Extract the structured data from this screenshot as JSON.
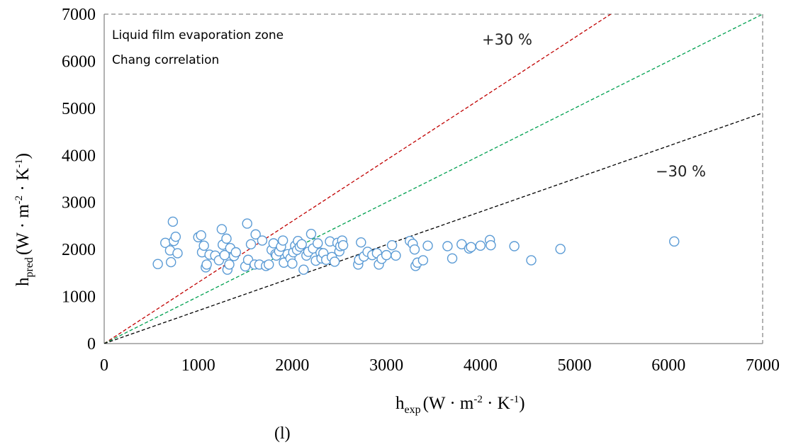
{
  "chart_data": {
    "type": "scatter",
    "x_range": [
      0,
      7000
    ],
    "y_range": [
      0,
      7000
    ],
    "x_ticks": [
      0,
      1000,
      2000,
      3000,
      4000,
      5000,
      6000,
      7000
    ],
    "y_ticks": [
      0,
      1000,
      2000,
      3000,
      4000,
      5000,
      6000,
      7000
    ],
    "x_tick_labels": [
      "0",
      "1000",
      "2000",
      "3000",
      "4000",
      "5000",
      "6000",
      "7000"
    ],
    "y_tick_labels": [
      "0",
      "1000",
      "2000",
      "3000",
      "4000",
      "5000",
      "6000",
      "7000"
    ],
    "xlabel": {
      "base": "h",
      "sub": "exp",
      "unit": "(W · m",
      "exp1": "-2",
      "mid": " · K",
      "exp2": "-1",
      "close": ")"
    },
    "ylabel": {
      "base": "h",
      "sub": "pred",
      "unit": "(W · m",
      "exp1": "-2",
      "mid": " · K",
      "exp2": "-1",
      "close": ")"
    },
    "panel_label": "(l)",
    "annotation_lines": [
      "Liquid  film  evaporation zone",
      "Chang correlation"
    ],
    "reference_lines": [
      {
        "label": "+30 %",
        "slope": 1.3,
        "color": "#c00000"
      },
      {
        "label": "",
        "slope": 1.0,
        "color": "#00a050"
      },
      {
        "label": "−30 %",
        "slope": 0.7,
        "color": "#000000"
      }
    ],
    "grid": false,
    "marker": {
      "shape": "open-circle",
      "color": "#5b9bd5"
    },
    "points": [
      [
        570,
        1690
      ],
      [
        650,
        2140
      ],
      [
        700,
        1980
      ],
      [
        710,
        1730
      ],
      [
        730,
        2590
      ],
      [
        740,
        2180
      ],
      [
        760,
        2270
      ],
      [
        780,
        1920
      ],
      [
        1000,
        2260
      ],
      [
        1030,
        2300
      ],
      [
        1040,
        1940
      ],
      [
        1060,
        2080
      ],
      [
        1080,
        1620
      ],
      [
        1090,
        1680
      ],
      [
        1120,
        1890
      ],
      [
        1180,
        1870
      ],
      [
        1220,
        1770
      ],
      [
        1250,
        2430
      ],
      [
        1260,
        2100
      ],
      [
        1280,
        1880
      ],
      [
        1300,
        2230
      ],
      [
        1310,
        1570
      ],
      [
        1330,
        1680
      ],
      [
        1340,
        2030
      ],
      [
        1380,
        1860
      ],
      [
        1400,
        1940
      ],
      [
        1500,
        1640
      ],
      [
        1520,
        2550
      ],
      [
        1530,
        1780
      ],
      [
        1560,
        2110
      ],
      [
        1600,
        1680
      ],
      [
        1610,
        2320
      ],
      [
        1650,
        1680
      ],
      [
        1680,
        2190
      ],
      [
        1720,
        1650
      ],
      [
        1750,
        1680
      ],
      [
        1780,
        1990
      ],
      [
        1800,
        2130
      ],
      [
        1820,
        1900
      ],
      [
        1830,
        1870
      ],
      [
        1860,
        1960
      ],
      [
        1880,
        2060
      ],
      [
        1900,
        2190
      ],
      [
        1910,
        1720
      ],
      [
        1950,
        1900
      ],
      [
        1980,
        1810
      ],
      [
        2000,
        1700
      ],
      [
        2010,
        1940
      ],
      [
        2030,
        2080
      ],
      [
        2050,
        1990
      ],
      [
        2060,
        2180
      ],
      [
        2080,
        2060
      ],
      [
        2100,
        2110
      ],
      [
        2120,
        1570
      ],
      [
        2150,
        1870
      ],
      [
        2170,
        1950
      ],
      [
        2200,
        2330
      ],
      [
        2220,
        2020
      ],
      [
        2250,
        1760
      ],
      [
        2270,
        2130
      ],
      [
        2300,
        1930
      ],
      [
        2310,
        1810
      ],
      [
        2330,
        1920
      ],
      [
        2360,
        1780
      ],
      [
        2400,
        2170
      ],
      [
        2420,
        1840
      ],
      [
        2450,
        1740
      ],
      [
        2480,
        2140
      ],
      [
        2500,
        1960
      ],
      [
        2510,
        2070
      ],
      [
        2530,
        2190
      ],
      [
        2540,
        2090
      ],
      [
        2700,
        1680
      ],
      [
        2710,
        1780
      ],
      [
        2730,
        2150
      ],
      [
        2760,
        1850
      ],
      [
        2800,
        1950
      ],
      [
        2850,
        1880
      ],
      [
        2900,
        1920
      ],
      [
        2920,
        1680
      ],
      [
        2950,
        1800
      ],
      [
        3000,
        1880
      ],
      [
        3060,
        2090
      ],
      [
        3100,
        1870
      ],
      [
        3250,
        2180
      ],
      [
        3280,
        2120
      ],
      [
        3300,
        2000
      ],
      [
        3310,
        1650
      ],
      [
        3330,
        1720
      ],
      [
        3390,
        1770
      ],
      [
        3440,
        2080
      ],
      [
        3650,
        2070
      ],
      [
        3700,
        1810
      ],
      [
        3800,
        2110
      ],
      [
        3880,
        2020
      ],
      [
        3900,
        2050
      ],
      [
        4000,
        2080
      ],
      [
        4100,
        2200
      ],
      [
        4110,
        2090
      ],
      [
        4360,
        2070
      ],
      [
        4540,
        1770
      ],
      [
        4850,
        2010
      ],
      [
        6060,
        2170
      ]
    ]
  }
}
